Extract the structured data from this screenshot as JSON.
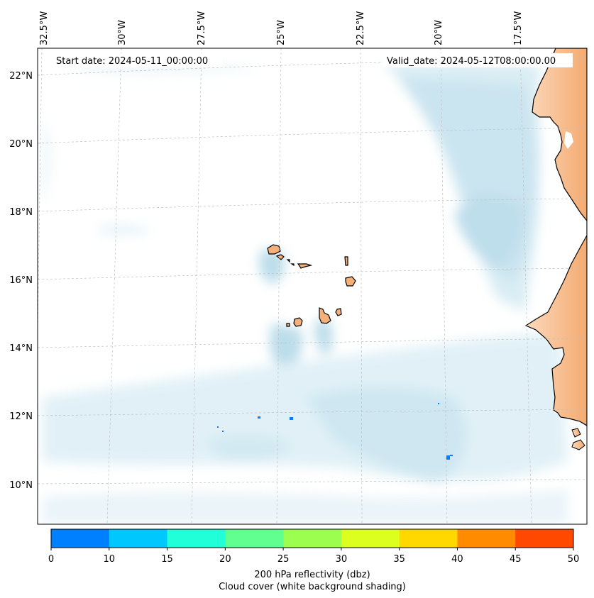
{
  "map": {
    "start_date_text": "Start date: 2024-05-11_00:00:00",
    "valid_date_text": "Valid_date: 2024-05-12T08:00:00.00",
    "lon_labels": [
      "32.5°W",
      "30°W",
      "27.5°W",
      "25°W",
      "22.5°W",
      "20°W",
      "17.5°W"
    ],
    "lat_labels": [
      "22°N",
      "20°N",
      "18°N",
      "16°N",
      "14°N",
      "12°N",
      "10°N"
    ],
    "grid": true
  },
  "colorbar": {
    "ticks": [
      "0",
      "10",
      "15",
      "20",
      "25",
      "30",
      "35",
      "40",
      "45",
      "50"
    ],
    "colors": [
      "#0080ff",
      "#00c8ff",
      "#20ffd8",
      "#60ff90",
      "#9cff50",
      "#dcff20",
      "#ffd800",
      "#ff8c00",
      "#ff4800"
    ],
    "label_line1": "200 hPa reflectivity (dbz)",
    "label_line2": "Cloud cover (white background shading)"
  },
  "palette": {
    "land": "#f5b07a",
    "land_light": "#fbd6b8",
    "cloud": "#b8dcea",
    "reflectivity_low": "#0080ff"
  }
}
